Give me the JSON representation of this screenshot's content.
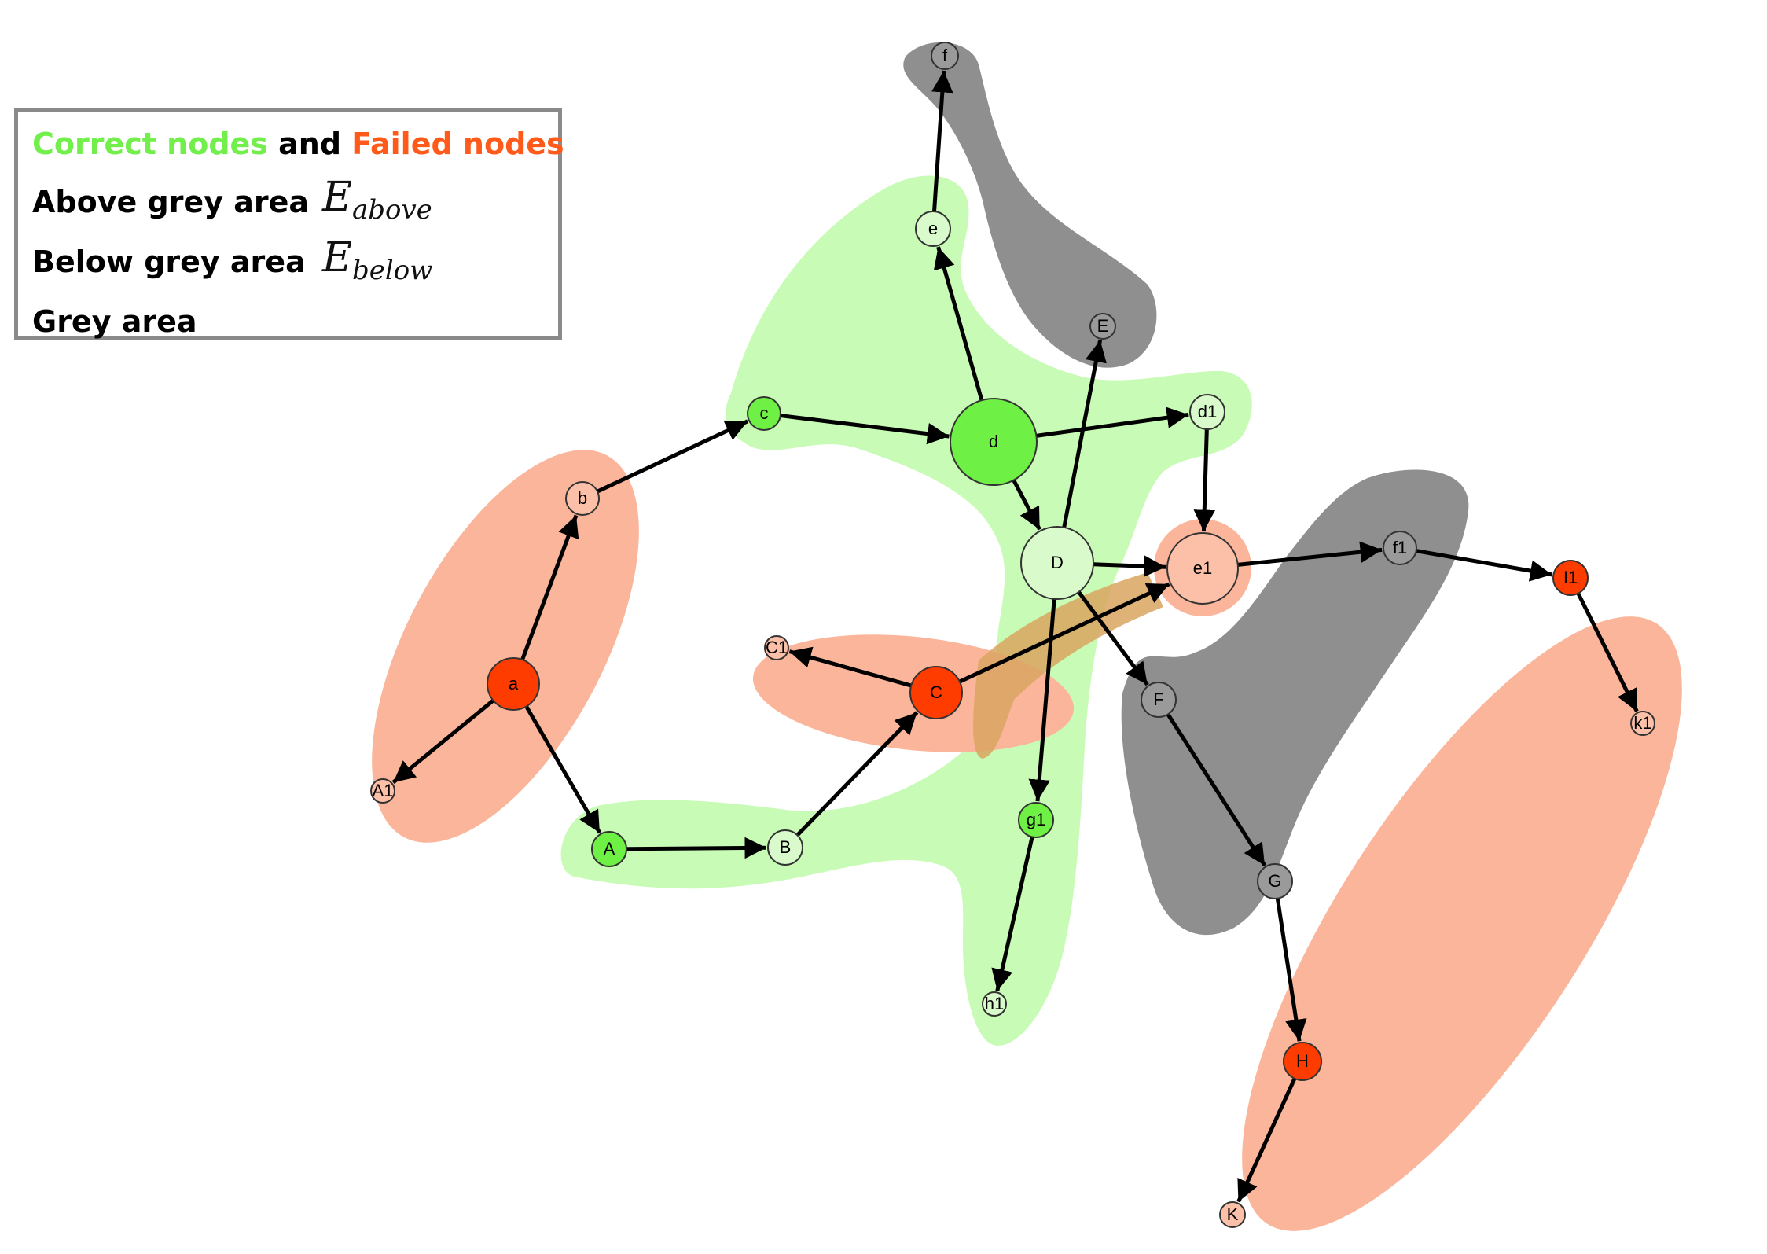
{
  "legend": {
    "correct_label": "Correct nodes",
    "and_label": " and ",
    "failed_label": "Failed nodes",
    "above_label": "Above grey area",
    "above_symbol": "E",
    "above_subscript": "above",
    "below_label": "Below grey area",
    "below_symbol": "E",
    "below_subscript": "below",
    "grey_label": "Grey area"
  },
  "colors": {
    "correct_text": "#72ef4a",
    "failed_text": "#ff5a1a",
    "correct_region": "#c8fbb5",
    "failed_region": "#fbb59a",
    "grey_region": "#8f8f8f",
    "correct_node_strong": "#6ff045",
    "correct_node_light": "#d9fbcc",
    "failed_node_strong": "#ff3c00",
    "failed_node_light": "#fcbfa8",
    "grey_node": "#9a9a9a"
  },
  "nodes": [
    {
      "id": "a",
      "label": "a",
      "state": "failed-strong"
    },
    {
      "id": "b",
      "label": "b",
      "state": "failed-light"
    },
    {
      "id": "A1",
      "label": "A1",
      "state": "failed-light"
    },
    {
      "id": "c",
      "label": "c",
      "state": "correct-strong"
    },
    {
      "id": "d",
      "label": "d",
      "state": "correct-strong"
    },
    {
      "id": "e",
      "label": "e",
      "state": "correct-light"
    },
    {
      "id": "f",
      "label": "f",
      "state": "grey"
    },
    {
      "id": "E",
      "label": "E",
      "state": "grey"
    },
    {
      "id": "d1",
      "label": "d1",
      "state": "correct-light"
    },
    {
      "id": "D",
      "label": "D",
      "state": "correct-light"
    },
    {
      "id": "e1",
      "label": "e1",
      "state": "failed-light"
    },
    {
      "id": "f1",
      "label": "f1",
      "state": "grey"
    },
    {
      "id": "I1",
      "label": "I1",
      "state": "failed-strong"
    },
    {
      "id": "k1",
      "label": "k1",
      "state": "failed-light"
    },
    {
      "id": "C",
      "label": "C",
      "state": "failed-strong"
    },
    {
      "id": "C1",
      "label": "C1",
      "state": "failed-light"
    },
    {
      "id": "F",
      "label": "F",
      "state": "grey"
    },
    {
      "id": "G",
      "label": "G",
      "state": "grey"
    },
    {
      "id": "H",
      "label": "H",
      "state": "failed-strong"
    },
    {
      "id": "K",
      "label": "K",
      "state": "failed-light"
    },
    {
      "id": "A",
      "label": "A",
      "state": "correct-strong"
    },
    {
      "id": "B",
      "label": "B",
      "state": "correct-light"
    },
    {
      "id": "g1",
      "label": "g1",
      "state": "correct-strong"
    },
    {
      "id": "h1",
      "label": "h1",
      "state": "correct-light"
    }
  ],
  "edges": [
    {
      "from": "a",
      "to": "b"
    },
    {
      "from": "a",
      "to": "A1"
    },
    {
      "from": "a",
      "to": "A"
    },
    {
      "from": "b",
      "to": "c"
    },
    {
      "from": "c",
      "to": "d"
    },
    {
      "from": "d",
      "to": "e"
    },
    {
      "from": "e",
      "to": "f"
    },
    {
      "from": "d",
      "to": "d1"
    },
    {
      "from": "d",
      "to": "D"
    },
    {
      "from": "D",
      "to": "E"
    },
    {
      "from": "D",
      "to": "e1"
    },
    {
      "from": "D",
      "to": "F"
    },
    {
      "from": "D",
      "to": "g1"
    },
    {
      "from": "d1",
      "to": "e1"
    },
    {
      "from": "e1",
      "to": "f1"
    },
    {
      "from": "f1",
      "to": "I1"
    },
    {
      "from": "I1",
      "to": "k1"
    },
    {
      "from": "C",
      "to": "C1"
    },
    {
      "from": "C",
      "to": "e1"
    },
    {
      "from": "F",
      "to": "G"
    },
    {
      "from": "G",
      "to": "H"
    },
    {
      "from": "H",
      "to": "K"
    },
    {
      "from": "A",
      "to": "B"
    },
    {
      "from": "B",
      "to": "C"
    },
    {
      "from": "g1",
      "to": "h1"
    }
  ]
}
